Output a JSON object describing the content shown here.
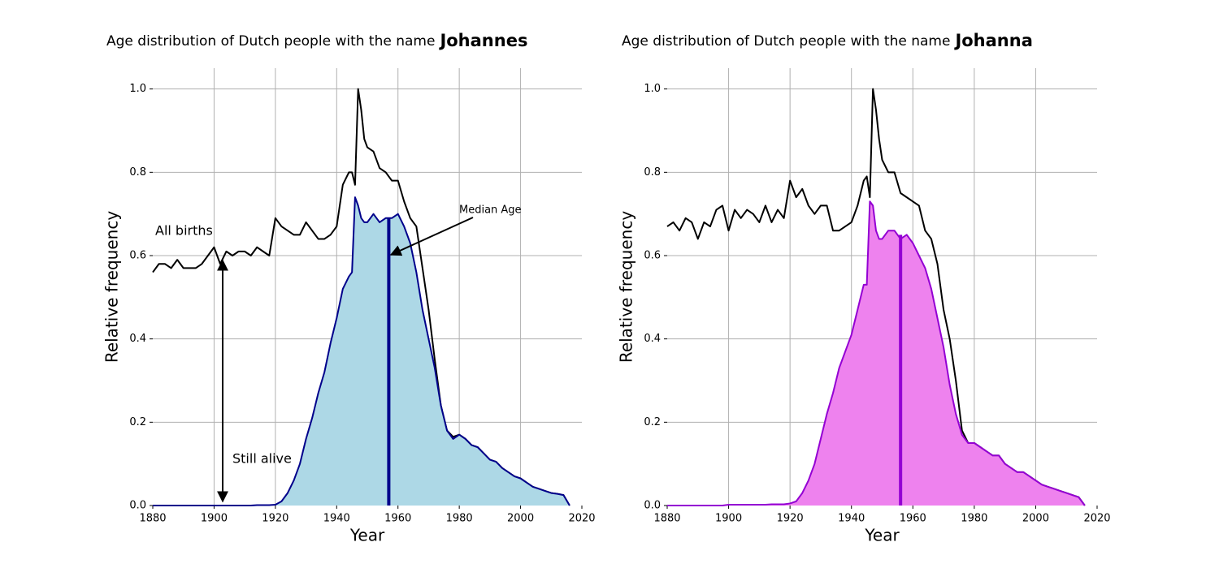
{
  "chart_data": [
    {
      "type": "line",
      "title": "Age distribution of Dutch people with the name",
      "name": "Johannes",
      "xlabel": "Year",
      "ylabel": "Relative frequency",
      "x": [
        1880,
        1882,
        1884,
        1886,
        1888,
        1890,
        1892,
        1894,
        1896,
        1898,
        1900,
        1902,
        1904,
        1906,
        1908,
        1910,
        1912,
        1914,
        1916,
        1918,
        1920,
        1922,
        1924,
        1926,
        1928,
        1930,
        1932,
        1934,
        1936,
        1938,
        1940,
        1942,
        1944,
        1945,
        1946,
        1947,
        1948,
        1949,
        1950,
        1952,
        1954,
        1956,
        1958,
        1960,
        1962,
        1964,
        1966,
        1968,
        1970,
        1972,
        1974,
        1976,
        1978,
        1980,
        1982,
        1984,
        1986,
        1988,
        1990,
        1992,
        1994,
        1996,
        1998,
        2000,
        2002,
        2004,
        2006,
        2008,
        2010,
        2012,
        2014,
        2016
      ],
      "series": [
        {
          "name": "All births",
          "color": "#000000",
          "values": [
            0.56,
            0.58,
            0.58,
            0.57,
            0.59,
            0.57,
            0.57,
            0.57,
            0.58,
            0.6,
            0.62,
            0.58,
            0.61,
            0.6,
            0.61,
            0.61,
            0.6,
            0.62,
            0.61,
            0.6,
            0.69,
            0.67,
            0.66,
            0.65,
            0.65,
            0.68,
            0.66,
            0.64,
            0.64,
            0.65,
            0.67,
            0.77,
            0.8,
            0.8,
            0.77,
            1.0,
            0.95,
            0.88,
            0.86,
            0.85,
            0.81,
            0.8,
            0.78,
            0.78,
            0.73,
            0.69,
            0.67,
            0.57,
            0.47,
            0.35,
            0.24,
            0.18,
            0.165,
            0.17,
            0.16,
            0.145,
            0.14,
            0.125,
            0.11,
            0.105,
            0.09,
            0.08,
            0.07,
            0.065,
            0.055,
            0.045,
            0.04,
            0.035,
            0.03,
            0.028,
            0.025,
            0.0
          ]
        },
        {
          "name": "Still alive",
          "color": "#00008b",
          "fill": "#add8e6",
          "values": [
            0,
            0,
            0,
            0,
            0,
            0,
            0,
            0,
            0,
            0,
            0,
            0,
            0,
            0,
            0,
            0,
            0,
            0.001,
            0.001,
            0.001,
            0.002,
            0.01,
            0.03,
            0.06,
            0.1,
            0.16,
            0.21,
            0.27,
            0.32,
            0.39,
            0.45,
            0.52,
            0.55,
            0.56,
            0.74,
            0.72,
            0.69,
            0.68,
            0.68,
            0.7,
            0.68,
            0.69,
            0.69,
            0.7,
            0.67,
            0.63,
            0.56,
            0.47,
            0.4,
            0.33,
            0.24,
            0.18,
            0.16,
            0.17,
            0.16,
            0.145,
            0.14,
            0.125,
            0.11,
            0.105,
            0.09,
            0.08,
            0.07,
            0.065,
            0.055,
            0.045,
            0.04,
            0.035,
            0.03,
            0.028,
            0.025,
            0.0
          ]
        }
      ],
      "median": {
        "x": 1957,
        "y": 0.69
      },
      "median_label": "Median Age",
      "xlim": [
        1880,
        2020
      ],
      "ylim": [
        0,
        1.05
      ],
      "xticks": [
        1880,
        1900,
        1920,
        1940,
        1960,
        1980,
        2000,
        2020
      ],
      "yticks": [
        {
          "value": 0,
          "label": "0.0"
        },
        0.2,
        0.4,
        0.6,
        0.8,
        {
          "value": 1,
          "label": "1.0"
        }
      ],
      "grid": true
    },
    {
      "type": "line",
      "title": "Age distribution of Dutch people with the name",
      "name": "Johanna",
      "xlabel": "Year",
      "ylabel": "Relative frequency",
      "x": [
        1880,
        1882,
        1884,
        1886,
        1888,
        1890,
        1892,
        1894,
        1896,
        1898,
        1900,
        1902,
        1904,
        1906,
        1908,
        1910,
        1912,
        1914,
        1916,
        1918,
        1920,
        1922,
        1924,
        1926,
        1928,
        1930,
        1932,
        1934,
        1936,
        1938,
        1940,
        1942,
        1944,
        1945,
        1946,
        1947,
        1948,
        1949,
        1950,
        1952,
        1954,
        1956,
        1958,
        1960,
        1962,
        1964,
        1966,
        1968,
        1970,
        1972,
        1974,
        1976,
        1978,
        1980,
        1982,
        1984,
        1986,
        1988,
        1990,
        1992,
        1994,
        1996,
        1998,
        2000,
        2002,
        2004,
        2006,
        2008,
        2010,
        2012,
        2014,
        2016
      ],
      "series": [
        {
          "color": "#000000",
          "values": [
            0.67,
            0.68,
            0.66,
            0.69,
            0.68,
            0.64,
            0.68,
            0.67,
            0.71,
            0.72,
            0.66,
            0.71,
            0.69,
            0.71,
            0.7,
            0.68,
            0.72,
            0.68,
            0.71,
            0.69,
            0.78,
            0.74,
            0.76,
            0.72,
            0.7,
            0.72,
            0.72,
            0.66,
            0.66,
            0.67,
            0.68,
            0.72,
            0.78,
            0.79,
            0.74,
            1.0,
            0.95,
            0.88,
            0.83,
            0.8,
            0.8,
            0.75,
            0.74,
            0.73,
            0.72,
            0.66,
            0.64,
            0.58,
            0.47,
            0.4,
            0.3,
            0.18,
            0.15,
            0.15,
            0.14,
            0.13,
            0.12,
            0.12,
            0.1,
            0.09,
            0.08,
            0.08,
            0.07,
            0.06,
            0.05,
            0.045,
            0.04,
            0.035,
            0.03,
            0.025,
            0.02,
            0.0
          ]
        },
        {
          "color": "#9400d3",
          "fill": "#ee82ee",
          "values": [
            0,
            0,
            0,
            0,
            0,
            0,
            0,
            0,
            0,
            0,
            0.002,
            0.002,
            0.002,
            0.002,
            0.002,
            0.002,
            0.002,
            0.003,
            0.003,
            0.003,
            0.005,
            0.01,
            0.03,
            0.06,
            0.1,
            0.16,
            0.22,
            0.27,
            0.33,
            0.37,
            0.41,
            0.47,
            0.53,
            0.53,
            0.73,
            0.72,
            0.66,
            0.64,
            0.64,
            0.66,
            0.66,
            0.64,
            0.65,
            0.63,
            0.6,
            0.57,
            0.52,
            0.45,
            0.38,
            0.29,
            0.22,
            0.17,
            0.15,
            0.15,
            0.14,
            0.13,
            0.12,
            0.12,
            0.1,
            0.09,
            0.08,
            0.08,
            0.07,
            0.06,
            0.05,
            0.045,
            0.04,
            0.035,
            0.03,
            0.025,
            0.02,
            0.0
          ]
        }
      ],
      "median": {
        "x": 1956,
        "y": 0.65
      },
      "xlim": [
        1880,
        2020
      ],
      "ylim": [
        0,
        1.05
      ],
      "xticks": [
        1880,
        1900,
        1920,
        1940,
        1960,
        1980,
        2000,
        2020
      ],
      "yticks": [
        {
          "value": 0,
          "label": "0.0"
        },
        0.2,
        0.4,
        0.6,
        0.8,
        {
          "value": 1,
          "label": "1.0"
        }
      ],
      "grid": true
    }
  ]
}
